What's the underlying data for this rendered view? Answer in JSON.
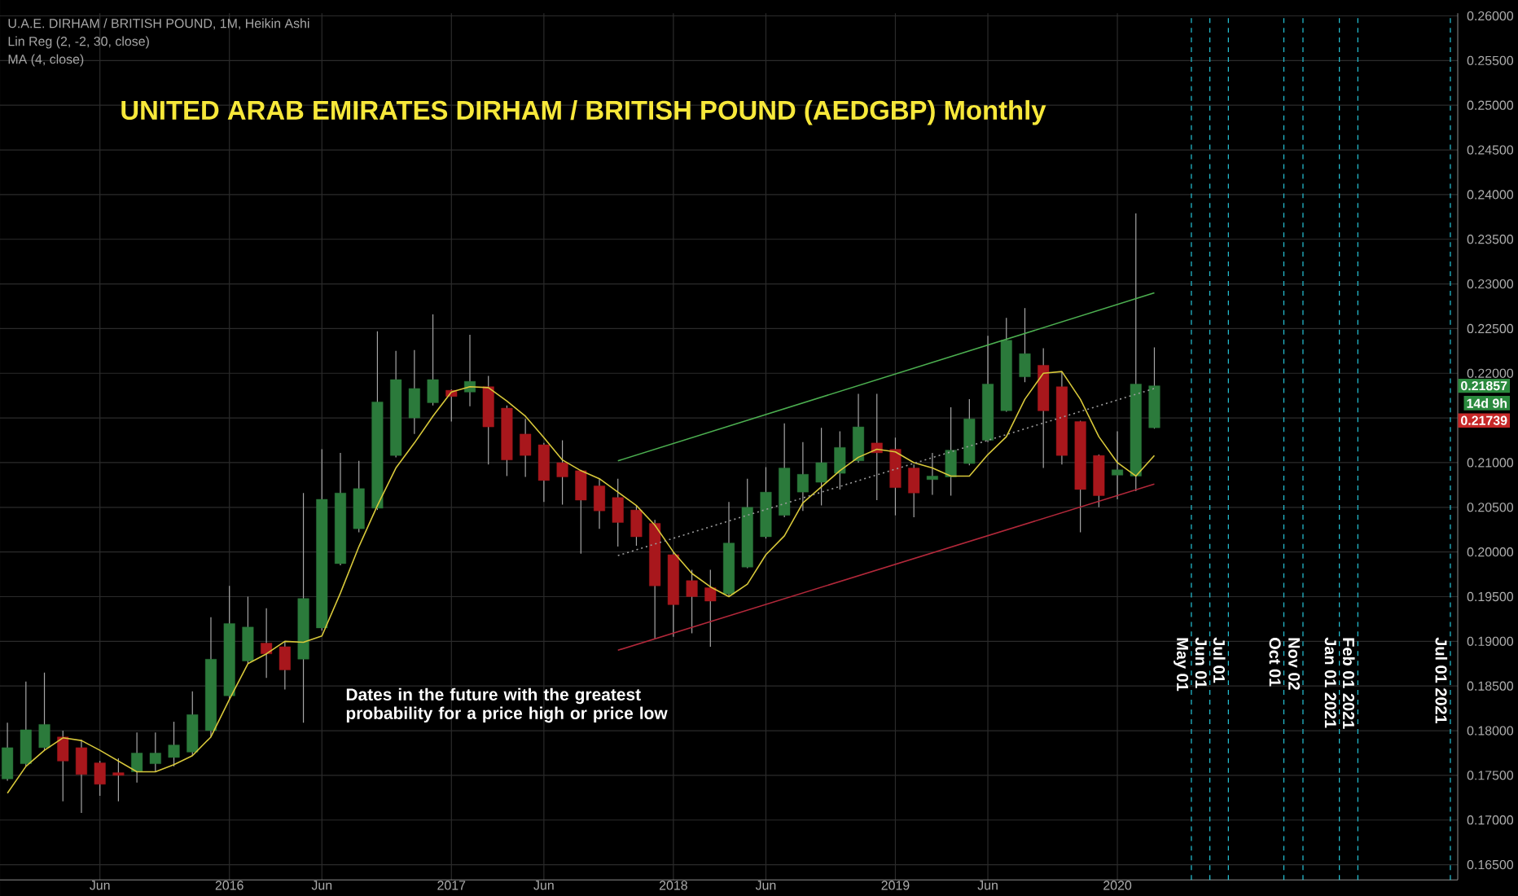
{
  "chart_data": {
    "type": "candlestick",
    "title": "UNITED ARAB EMIRATES DIRHAM / BRITISH POUND (AEDGBP) Monthly",
    "annotations": [
      "U.A.E. DIRHAM / BRITISH POUND, 1M, Heikin Ashi",
      "Lin Reg (2, -2, 30, close)",
      "MA (4, close)",
      "Dates in the future with the greatest probability for a price high or price low",
      "0.21857",
      "14d 9h",
      "0.21739"
    ],
    "x": [
      "2015-01",
      "2015-02",
      "2015-03",
      "2015-04",
      "2015-05",
      "2015-06",
      "2015-07",
      "2015-08",
      "2015-09",
      "2015-10",
      "2015-11",
      "2015-12",
      "2016-01",
      "2016-02",
      "2016-03",
      "2016-04",
      "2016-05",
      "2016-06",
      "2016-07",
      "2016-08",
      "2016-09",
      "2016-10",
      "2016-11",
      "2016-12",
      "2017-01",
      "2017-02",
      "2017-03",
      "2017-04",
      "2017-05",
      "2017-06",
      "2017-07",
      "2017-08",
      "2017-09",
      "2017-10",
      "2017-11",
      "2017-12",
      "2018-01",
      "2018-02",
      "2018-03",
      "2018-04",
      "2018-05",
      "2018-06",
      "2018-07",
      "2018-08",
      "2018-09",
      "2018-10",
      "2018-11",
      "2018-12",
      "2019-01",
      "2019-02",
      "2019-03",
      "2019-04",
      "2019-05",
      "2019-06",
      "2019-07",
      "2019-08",
      "2019-09",
      "2019-10",
      "2019-11",
      "2019-12",
      "2020-01",
      "2020-02",
      "2020-03"
    ],
    "ohlc": [
      [
        0.1746,
        0.1809,
        0.1744,
        0.1781
      ],
      [
        0.1763,
        0.1855,
        0.176,
        0.1801
      ],
      [
        0.1781,
        0.1865,
        0.1778,
        0.1807
      ],
      [
        0.1793,
        0.18,
        0.1721,
        0.1766
      ],
      [
        0.1781,
        0.179,
        0.1708,
        0.1751
      ],
      [
        0.1764,
        0.1766,
        0.1727,
        0.174
      ],
      [
        0.1753,
        0.1769,
        0.1721,
        0.175
      ],
      [
        0.1754,
        0.1798,
        0.1742,
        0.1775
      ],
      [
        0.1763,
        0.1798,
        0.1754,
        0.1775
      ],
      [
        0.177,
        0.181,
        0.176,
        0.1784
      ],
      [
        0.1776,
        0.1844,
        0.1772,
        0.1818
      ],
      [
        0.18,
        0.1927,
        0.1793,
        0.188
      ],
      [
        0.1839,
        0.1962,
        0.1836,
        0.192
      ],
      [
        0.1878,
        0.195,
        0.1875,
        0.1916
      ],
      [
        0.1898,
        0.1937,
        0.1859,
        0.1886
      ],
      [
        0.1894,
        0.19,
        0.1846,
        0.1868
      ],
      [
        0.188,
        0.2066,
        0.1809,
        0.1948
      ],
      [
        0.1915,
        0.2115,
        0.1912,
        0.2059
      ],
      [
        0.1987,
        0.2111,
        0.1985,
        0.2066
      ],
      [
        0.2026,
        0.2102,
        0.2022,
        0.2071
      ],
      [
        0.2049,
        0.2247,
        0.2047,
        0.2168
      ],
      [
        0.2108,
        0.2225,
        0.2106,
        0.2193
      ],
      [
        0.215,
        0.2226,
        0.2132,
        0.2183
      ],
      [
        0.2167,
        0.2266,
        0.2164,
        0.2193
      ],
      [
        0.2181,
        0.2182,
        0.2146,
        0.2174
      ],
      [
        0.2179,
        0.2243,
        0.2163,
        0.2191
      ],
      [
        0.2185,
        0.2197,
        0.2098,
        0.214
      ],
      [
        0.2161,
        0.2164,
        0.2085,
        0.2103
      ],
      [
        0.2132,
        0.2149,
        0.2084,
        0.2108
      ],
      [
        0.212,
        0.2122,
        0.2056,
        0.208
      ],
      [
        0.21,
        0.2125,
        0.2053,
        0.2084
      ],
      [
        0.2091,
        0.2092,
        0.1998,
        0.2058
      ],
      [
        0.2074,
        0.2082,
        0.2026,
        0.2046
      ],
      [
        0.2061,
        0.2082,
        0.2006,
        0.2033
      ],
      [
        0.2047,
        0.2052,
        0.2007,
        0.2017
      ],
      [
        0.2032,
        0.2036,
        0.1903,
        0.1962
      ],
      [
        0.1997,
        0.2,
        0.1905,
        0.1941
      ],
      [
        0.1968,
        0.198,
        0.1909,
        0.195
      ],
      [
        0.196,
        0.198,
        0.1894,
        0.1945
      ],
      [
        0.1953,
        0.2056,
        0.1951,
        0.201
      ],
      [
        0.1983,
        0.2082,
        0.1982,
        0.205
      ],
      [
        0.2017,
        0.2095,
        0.2015,
        0.2067
      ],
      [
        0.2041,
        0.2144,
        0.2039,
        0.2094
      ],
      [
        0.2067,
        0.2123,
        0.2046,
        0.2087
      ],
      [
        0.2078,
        0.2139,
        0.2052,
        0.21
      ],
      [
        0.2088,
        0.2135,
        0.207,
        0.2117
      ],
      [
        0.2102,
        0.2177,
        0.21,
        0.214
      ],
      [
        0.2122,
        0.2177,
        0.2058,
        0.2111
      ],
      [
        0.2115,
        0.2128,
        0.2041,
        0.2072
      ],
      [
        0.2094,
        0.2098,
        0.2039,
        0.2066
      ],
      [
        0.2081,
        0.2111,
        0.2064,
        0.2085
      ],
      [
        0.2084,
        0.2162,
        0.2063,
        0.2114
      ],
      [
        0.2099,
        0.2171,
        0.2097,
        0.2149
      ],
      [
        0.2125,
        0.2242,
        0.2123,
        0.2188
      ],
      [
        0.2158,
        0.2262,
        0.2157,
        0.2237
      ],
      [
        0.2196,
        0.2273,
        0.219,
        0.2222
      ],
      [
        0.2209,
        0.2228,
        0.2094,
        0.2158
      ],
      [
        0.2185,
        0.2202,
        0.2098,
        0.2108
      ],
      [
        0.2146,
        0.2147,
        0.2022,
        0.207
      ],
      [
        0.2108,
        0.2109,
        0.205,
        0.2063
      ],
      [
        0.2086,
        0.2135,
        0.2059,
        0.2092
      ],
      [
        0.2085,
        0.2379,
        0.2068,
        0.2188
      ],
      [
        0.2139,
        0.2229,
        0.2138,
        0.2186
      ]
    ],
    "colors": [
      "#2b7a3b",
      "#2b7a3b",
      "#2b7a3b",
      "#a8171c",
      "#a8171c",
      "#a8171c",
      "#a8171c",
      "#2b7a3b",
      "#2b7a3b",
      "#2b7a3b",
      "#2b7a3b",
      "#2b7a3b",
      "#2b7a3b",
      "#2b7a3b",
      "#a8171c",
      "#a8171c",
      "#2b7a3b",
      "#2b7a3b",
      "#2b7a3b",
      "#2b7a3b",
      "#2b7a3b",
      "#2b7a3b",
      "#2b7a3b",
      "#2b7a3b",
      "#a8171c",
      "#2b7a3b",
      "#a8171c",
      "#a8171c",
      "#a8171c",
      "#a8171c",
      "#a8171c",
      "#a8171c",
      "#a8171c",
      "#a8171c",
      "#a8171c",
      "#a8171c",
      "#a8171c",
      "#a8171c",
      "#a8171c",
      "#2b7a3b",
      "#2b7a3b",
      "#2b7a3b",
      "#2b7a3b",
      "#2b7a3b",
      "#2b7a3b",
      "#2b7a3b",
      "#2b7a3b",
      "#a8171c",
      "#a8171c",
      "#a8171c",
      "#2b7a3b",
      "#2b7a3b",
      "#2b7a3b",
      "#2b7a3b",
      "#2b7a3b",
      "#2b7a3b",
      "#a8171c",
      "#a8171c",
      "#a8171c",
      "#a8171c",
      "#2b7a3b",
      "#2b7a3b",
      "#2b7a3b"
    ],
    "series": [
      {
        "type": "line",
        "color": "#d8c83a",
        "values": [
          0.173,
          0.176,
          0.1778,
          0.1792,
          0.1789,
          0.1778,
          0.1766,
          0.1754,
          0.1754,
          0.1762,
          0.1772,
          0.1793,
          0.1835,
          0.1875,
          0.1886,
          0.19,
          0.1899,
          0.1906,
          0.1954,
          0.2006,
          0.2052,
          0.2094,
          0.2122,
          0.2152,
          0.2179,
          0.2185,
          0.2184,
          0.2169,
          0.2152,
          0.2128,
          0.2103,
          0.2091,
          0.2082,
          0.2067,
          0.2052,
          0.203,
          0.2,
          0.1976,
          0.1961,
          0.195,
          0.1964,
          0.1997,
          0.2018,
          0.2055,
          0.2073,
          0.2091,
          0.2106,
          0.2115,
          0.2112,
          0.21,
          0.2094,
          0.2085,
          0.2085,
          0.2109,
          0.2129,
          0.2171,
          0.22,
          0.2202,
          0.2171,
          0.2129,
          0.21,
          0.2085,
          0.2108
        ]
      },
      {
        "type": "line",
        "color": "#4caf50",
        "x": [
          "2017-10",
          "2020-03"
        ],
        "values": [
          0.2102,
          0.229
        ]
      },
      {
        "type": "line",
        "color": "#9e9e9e",
        "line_style": "dotted",
        "x": [
          "2017-10",
          "2020-03"
        ],
        "values": [
          0.1996,
          0.2183
        ]
      },
      {
        "type": "line",
        "color": "#b2283a",
        "x": [
          "2017-10",
          "2020-03"
        ],
        "values": [
          0.189,
          0.2076
        ]
      }
    ],
    "ref_lines": [
      {
        "axis": "x",
        "value": "2020-05-01",
        "label": "May 01",
        "color": "#26c6da",
        "line_style": "dashed"
      },
      {
        "axis": "x",
        "value": "2020-06-01",
        "label": "Jun 01",
        "color": "#26c6da",
        "line_style": "dashed"
      },
      {
        "axis": "x",
        "value": "2020-07-01",
        "label": "Jul 01",
        "color": "#26c6da",
        "line_style": "dashed"
      },
      {
        "axis": "x",
        "value": "2020-10-01",
        "label": "Oct 01",
        "color": "#26c6da",
        "line_style": "dashed"
      },
      {
        "axis": "x",
        "value": "2020-11-02",
        "label": "Nov 02",
        "color": "#26c6da",
        "line_style": "dashed"
      },
      {
        "axis": "x",
        "value": "2021-01-01",
        "label": "Jan 01 2021",
        "color": "#26c6da",
        "line_style": "dashed"
      },
      {
        "axis": "x",
        "value": "2021-02-01",
        "label": "Feb 01 2021",
        "color": "#26c6da",
        "line_style": "dashed"
      },
      {
        "axis": "x",
        "value": "2021-07-01",
        "label": "Jul 01 2021",
        "color": "#26c6da",
        "line_style": "dashed"
      }
    ],
    "xlim": [
      "2014-12-19",
      "2021-07-13"
    ],
    "xticks": [
      {
        "value": "2015-06",
        "label": "Jun"
      },
      {
        "value": "2016-01",
        "label": "2016"
      },
      {
        "value": "2016-06",
        "label": "Jun"
      },
      {
        "value": "2017-01",
        "label": "2017"
      },
      {
        "value": "2017-06",
        "label": "Jun"
      },
      {
        "value": "2018-01",
        "label": "2018"
      },
      {
        "value": "2018-06",
        "label": "Jun"
      },
      {
        "value": "2019-01",
        "label": "2019"
      },
      {
        "value": "2019-06",
        "label": "Jun"
      },
      {
        "value": "2020-01",
        "label": "2020"
      }
    ],
    "ylim": [
      0.1633,
      0.2603
    ],
    "yticks": [
      {
        "value": 0.165,
        "label": "0.16500"
      },
      {
        "value": 0.17,
        "label": "0.17000"
      },
      {
        "value": 0.175,
        "label": "0.17500"
      },
      {
        "value": 0.18,
        "label": "0.18000"
      },
      {
        "value": 0.185,
        "label": "0.18500"
      },
      {
        "value": 0.19,
        "label": "0.19000"
      },
      {
        "value": 0.195,
        "label": "0.19500"
      },
      {
        "value": 0.2,
        "label": "0.20000"
      },
      {
        "value": 0.205,
        "label": "0.20500"
      },
      {
        "value": 0.21,
        "label": "0.21000"
      },
      {
        "value": 0.215,
        "label": null
      },
      {
        "value": 0.22,
        "label": "0.22000"
      },
      {
        "value": 0.225,
        "label": "0.22500"
      },
      {
        "value": 0.23,
        "label": "0.23000"
      },
      {
        "value": 0.235,
        "label": "0.23500"
      },
      {
        "value": 0.24,
        "label": "0.24000"
      },
      {
        "value": 0.245,
        "label": "0.24500"
      },
      {
        "value": 0.25,
        "label": "0.25000"
      },
      {
        "value": 0.255,
        "label": "0.25500"
      },
      {
        "value": 0.26,
        "label": "0.26000"
      }
    ],
    "grid": true,
    "marker": "none"
  }
}
